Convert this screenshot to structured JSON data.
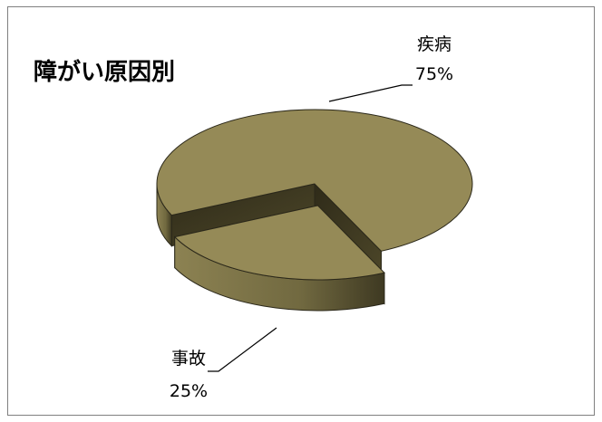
{
  "chart_data": {
    "type": "pie",
    "variant": "3d-exploded",
    "title": "障がい原因別",
    "categories": [
      "疾病",
      "事故"
    ],
    "values": [
      75,
      25
    ],
    "value_labels": [
      "75%",
      "25%"
    ],
    "legend": "none",
    "colors": {
      "top": "#958a57",
      "side_light": "#8c8252",
      "side_dark": "#4a4428",
      "cut_face": "#3f3a22",
      "edge": "#2b281a",
      "leader_line": "#000000"
    }
  }
}
